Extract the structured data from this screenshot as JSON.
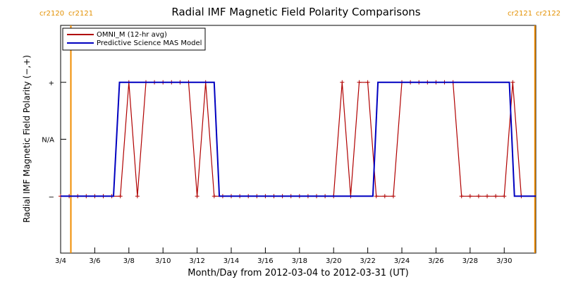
{
  "chart_data": {
    "type": "line",
    "title": "Radial IMF Magnetic Field Polarity Comparisons",
    "xlabel": "Month/Day from 2012-03-04 to 2012-03-31 (UT)",
    "ylabel": "Radial IMF Magnetic Field Polarity (−,+)",
    "x_day_range": [
      4,
      31.85
    ],
    "y_range": [
      -2,
      2
    ],
    "x_ticks": [
      {
        "day": 4,
        "label": "3/4"
      },
      {
        "day": 6,
        "label": "3/6"
      },
      {
        "day": 8,
        "label": "3/8"
      },
      {
        "day": 10,
        "label": "3/10"
      },
      {
        "day": 12,
        "label": "3/12"
      },
      {
        "day": 14,
        "label": "3/14"
      },
      {
        "day": 16,
        "label": "3/16"
      },
      {
        "day": 18,
        "label": "3/18"
      },
      {
        "day": 20,
        "label": "3/20"
      },
      {
        "day": 22,
        "label": "3/22"
      },
      {
        "day": 24,
        "label": "3/24"
      },
      {
        "day": 26,
        "label": "3/26"
      },
      {
        "day": 28,
        "label": "3/28"
      },
      {
        "day": 30,
        "label": "3/30"
      }
    ],
    "y_ticks": [
      {
        "value": 1,
        "label": "+"
      },
      {
        "value": 0,
        "label": "N/A"
      },
      {
        "value": -1,
        "label": "−"
      }
    ],
    "carrington_markers": [
      {
        "day": 4.6,
        "left_label": "cr2120",
        "right_label": "cr2121"
      },
      {
        "day": 31.8,
        "left_label": "cr2121",
        "right_label": "cr2122"
      }
    ],
    "legend_position": "top-left",
    "series": [
      {
        "name": "OMNI_M (12-hr avg)",
        "color": "#b00000",
        "markers": "plus",
        "points": [
          [
            4.0,
            -1
          ],
          [
            4.5,
            -1
          ],
          [
            5.0,
            -1
          ],
          [
            5.5,
            -1
          ],
          [
            6.0,
            -1
          ],
          [
            6.5,
            -1
          ],
          [
            7.0,
            -1
          ],
          [
            7.5,
            -1
          ],
          [
            8.0,
            1
          ],
          [
            8.5,
            -1
          ],
          [
            9.0,
            1
          ],
          [
            9.5,
            1
          ],
          [
            10.0,
            1
          ],
          [
            10.5,
            1
          ],
          [
            11.0,
            1
          ],
          [
            11.5,
            1
          ],
          [
            12.0,
            -1
          ],
          [
            12.5,
            1
          ],
          [
            13.0,
            -1
          ],
          [
            13.5,
            -1
          ],
          [
            14.0,
            -1
          ],
          [
            14.5,
            -1
          ],
          [
            15.0,
            -1
          ],
          [
            15.5,
            -1
          ],
          [
            16.0,
            -1
          ],
          [
            16.5,
            -1
          ],
          [
            17.0,
            -1
          ],
          [
            17.5,
            -1
          ],
          [
            18.0,
            -1
          ],
          [
            18.5,
            -1
          ],
          [
            19.0,
            -1
          ],
          [
            19.5,
            -1
          ],
          [
            20.0,
            -1
          ],
          [
            20.5,
            1
          ],
          [
            21.0,
            -1
          ],
          [
            21.5,
            1
          ],
          [
            22.0,
            1
          ],
          [
            22.5,
            -1
          ],
          [
            23.0,
            -1
          ],
          [
            23.5,
            -1
          ],
          [
            24.0,
            1
          ],
          [
            24.5,
            1
          ],
          [
            25.0,
            1
          ],
          [
            25.5,
            1
          ],
          [
            26.0,
            1
          ],
          [
            26.5,
            1
          ],
          [
            27.0,
            1
          ],
          [
            27.5,
            -1
          ],
          [
            28.0,
            -1
          ],
          [
            28.5,
            -1
          ],
          [
            29.0,
            -1
          ],
          [
            29.5,
            -1
          ],
          [
            30.0,
            -1
          ],
          [
            30.5,
            1
          ],
          [
            31.0,
            -1
          ]
        ]
      },
      {
        "name": "Predictive Science MAS Model",
        "color": "#0000c0",
        "markers": "none",
        "points": [
          [
            4.0,
            -1
          ],
          [
            7.1,
            -1
          ],
          [
            7.45,
            1
          ],
          [
            13.0,
            1
          ],
          [
            13.3,
            -1
          ],
          [
            22.3,
            -1
          ],
          [
            22.6,
            1
          ],
          [
            30.3,
            1
          ],
          [
            30.6,
            -1
          ],
          [
            31.85,
            -1
          ]
        ]
      }
    ]
  }
}
